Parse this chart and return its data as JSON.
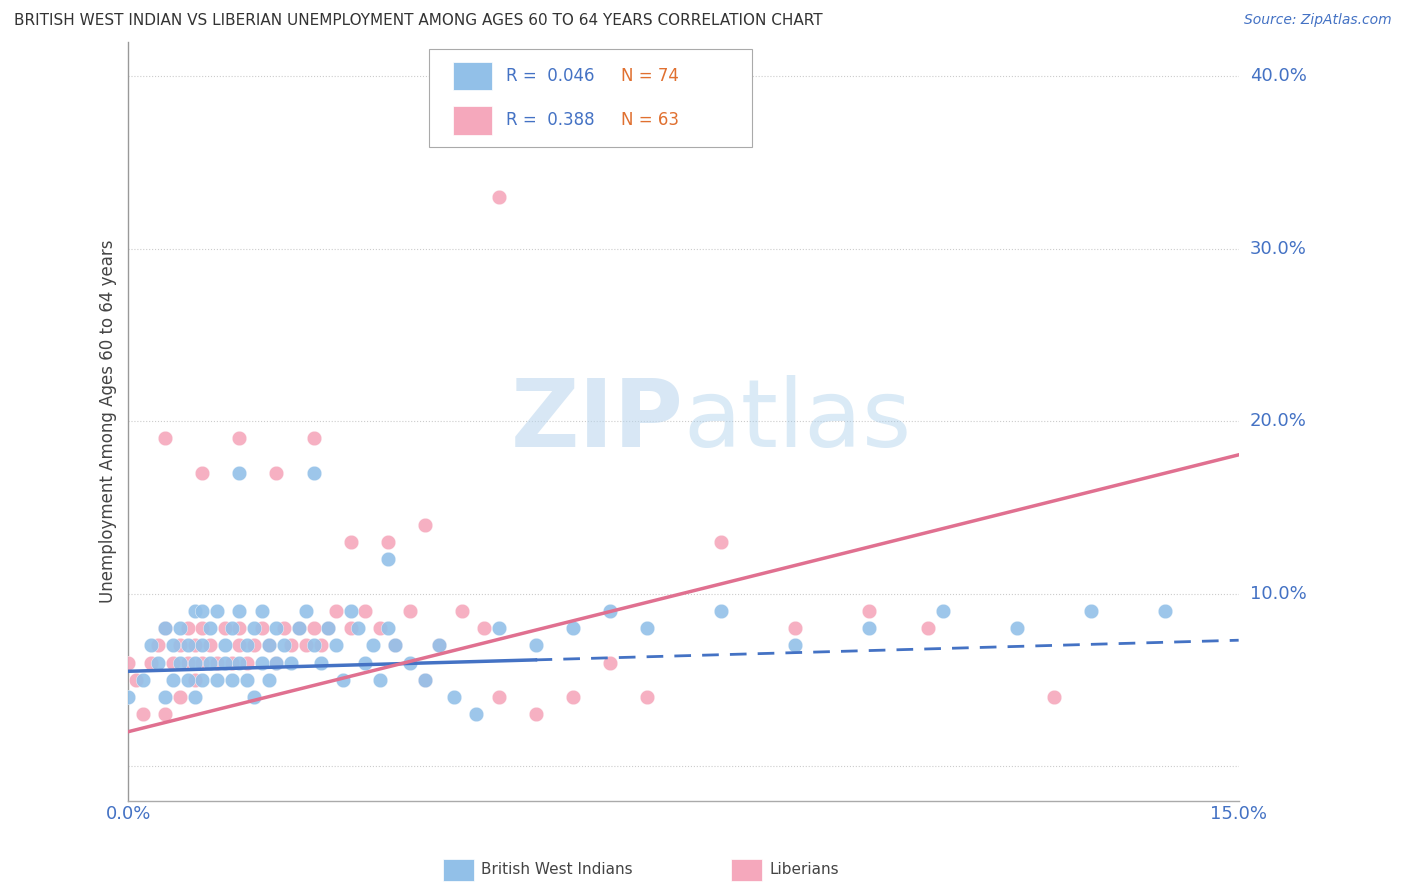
{
  "title": "BRITISH WEST INDIAN VS LIBERIAN UNEMPLOYMENT AMONG AGES 60 TO 64 YEARS CORRELATION CHART",
  "source": "Source: ZipAtlas.com",
  "ylabel": "Unemployment Among Ages 60 to 64 years",
  "xlim": [
    0.0,
    0.15
  ],
  "ylim": [
    -0.02,
    0.42
  ],
  "xticks": [
    0.0,
    0.05,
    0.1,
    0.15
  ],
  "xtick_labels": [
    "0.0%",
    "",
    "",
    "15.0%"
  ],
  "yticks": [
    0.0,
    0.1,
    0.2,
    0.3,
    0.4
  ],
  "ytick_labels": [
    "",
    "10.0%",
    "20.0%",
    "30.0%",
    "40.0%"
  ],
  "grid_color": "#cccccc",
  "background_color": "#ffffff",
  "watermark_zip": "ZIP",
  "watermark_atlas": "atlas",
  "legend_R_bwi": "R =  0.046",
  "legend_N_bwi": "N = 74",
  "legend_R_lib": "R =  0.388",
  "legend_N_lib": "N = 63",
  "bwi_color": "#92c0e8",
  "lib_color": "#f5a8bc",
  "bwi_line_color": "#4472c4",
  "lib_line_color": "#e07090",
  "bwi_line_solid_end": 0.055,
  "lib_line_intercept": 0.02,
  "lib_line_slope": 1.07,
  "bwi_line_intercept": 0.055,
  "bwi_line_slope": 0.12,
  "bwi_scatter_x": [
    0.0,
    0.002,
    0.003,
    0.004,
    0.005,
    0.005,
    0.006,
    0.006,
    0.007,
    0.007,
    0.008,
    0.008,
    0.009,
    0.009,
    0.009,
    0.01,
    0.01,
    0.01,
    0.011,
    0.011,
    0.012,
    0.012,
    0.013,
    0.013,
    0.014,
    0.014,
    0.015,
    0.015,
    0.016,
    0.016,
    0.017,
    0.017,
    0.018,
    0.018,
    0.019,
    0.019,
    0.02,
    0.02,
    0.021,
    0.022,
    0.023,
    0.024,
    0.025,
    0.026,
    0.027,
    0.028,
    0.029,
    0.03,
    0.031,
    0.032,
    0.033,
    0.034,
    0.035,
    0.036,
    0.038,
    0.04,
    0.042,
    0.044,
    0.047,
    0.05,
    0.055,
    0.06,
    0.065,
    0.07,
    0.08,
    0.09,
    0.1,
    0.11,
    0.12,
    0.13,
    0.14,
    0.015,
    0.025,
    0.035
  ],
  "bwi_scatter_y": [
    0.04,
    0.05,
    0.07,
    0.06,
    0.04,
    0.08,
    0.07,
    0.05,
    0.06,
    0.08,
    0.05,
    0.07,
    0.04,
    0.06,
    0.09,
    0.05,
    0.07,
    0.09,
    0.06,
    0.08,
    0.05,
    0.09,
    0.06,
    0.07,
    0.08,
    0.05,
    0.06,
    0.09,
    0.05,
    0.07,
    0.04,
    0.08,
    0.06,
    0.09,
    0.05,
    0.07,
    0.06,
    0.08,
    0.07,
    0.06,
    0.08,
    0.09,
    0.07,
    0.06,
    0.08,
    0.07,
    0.05,
    0.09,
    0.08,
    0.06,
    0.07,
    0.05,
    0.08,
    0.07,
    0.06,
    0.05,
    0.07,
    0.04,
    0.03,
    0.08,
    0.07,
    0.08,
    0.09,
    0.08,
    0.09,
    0.07,
    0.08,
    0.09,
    0.08,
    0.09,
    0.09,
    0.17,
    0.17,
    0.12
  ],
  "lib_scatter_x": [
    0.0,
    0.001,
    0.002,
    0.003,
    0.004,
    0.005,
    0.005,
    0.006,
    0.007,
    0.007,
    0.008,
    0.008,
    0.009,
    0.009,
    0.01,
    0.01,
    0.011,
    0.012,
    0.013,
    0.014,
    0.015,
    0.015,
    0.016,
    0.017,
    0.018,
    0.019,
    0.02,
    0.021,
    0.022,
    0.023,
    0.024,
    0.025,
    0.026,
    0.027,
    0.028,
    0.03,
    0.032,
    0.034,
    0.036,
    0.038,
    0.04,
    0.042,
    0.045,
    0.048,
    0.05,
    0.055,
    0.06,
    0.065,
    0.07,
    0.08,
    0.09,
    0.1,
    0.108,
    0.125,
    0.005,
    0.01,
    0.015,
    0.02,
    0.025,
    0.03,
    0.035,
    0.04,
    0.05
  ],
  "lib_scatter_y": [
    0.06,
    0.05,
    0.03,
    0.06,
    0.07,
    0.03,
    0.08,
    0.06,
    0.04,
    0.07,
    0.06,
    0.08,
    0.05,
    0.07,
    0.06,
    0.08,
    0.07,
    0.06,
    0.08,
    0.06,
    0.07,
    0.08,
    0.06,
    0.07,
    0.08,
    0.07,
    0.06,
    0.08,
    0.07,
    0.08,
    0.07,
    0.08,
    0.07,
    0.08,
    0.09,
    0.08,
    0.09,
    0.08,
    0.07,
    0.09,
    0.05,
    0.07,
    0.09,
    0.08,
    0.04,
    0.03,
    0.04,
    0.06,
    0.04,
    0.13,
    0.08,
    0.09,
    0.08,
    0.04,
    0.19,
    0.17,
    0.19,
    0.17,
    0.19,
    0.13,
    0.13,
    0.14,
    0.33
  ]
}
